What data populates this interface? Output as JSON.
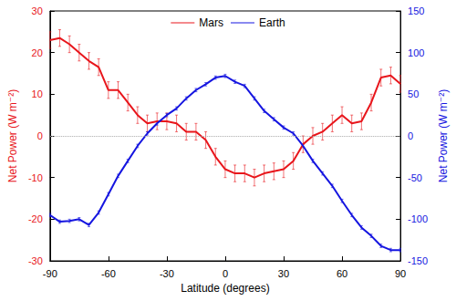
{
  "chart_data": {
    "type": "line",
    "x_label": "Latitude (degrees)",
    "y_label": "Net Power (W m⁻²)",
    "y2_label": "Net Power (W m⁻²)",
    "x": [
      -90,
      -85,
      -80,
      -75,
      -70,
      -65,
      -60,
      -55,
      -50,
      -45,
      -40,
      -35,
      -30,
      -25,
      -20,
      -15,
      -10,
      -5,
      0,
      5,
      10,
      15,
      20,
      25,
      30,
      35,
      40,
      45,
      50,
      55,
      60,
      65,
      70,
      75,
      80,
      85,
      90
    ],
    "series": [
      {
        "name": "Mars",
        "color": "#e8151b",
        "axis": "y",
        "values": [
          23,
          23.5,
          22,
          20,
          18,
          16.5,
          11,
          11,
          8,
          5,
          3,
          3.5,
          3.5,
          3,
          1,
          1,
          -1,
          -5,
          -8,
          -9,
          -9,
          -10,
          -9,
          -8.5,
          -8,
          -6,
          -2,
          0,
          1,
          3,
          5,
          3,
          3.5,
          8,
          14,
          14.5,
          12.5
        ],
        "errors": [
          2,
          2,
          2,
          2,
          2,
          2,
          2,
          2,
          2,
          2,
          2,
          2,
          2,
          2,
          2,
          2,
          2,
          2,
          2,
          2,
          2,
          2,
          2,
          2,
          2,
          2,
          2,
          2,
          2,
          2,
          2,
          2,
          2,
          2,
          2,
          2,
          2
        ]
      },
      {
        "name": "Earth",
        "color": "#1515e0",
        "axis": "y2",
        "values": [
          -95,
          -103,
          -102,
          -100,
          -107,
          -92,
          -70,
          -48,
          -30,
          -12,
          3,
          15,
          25,
          33,
          45,
          55,
          62,
          70,
          72,
          65,
          60,
          45,
          30,
          20,
          10,
          3,
          -12,
          -30,
          -45,
          -60,
          -78,
          -95,
          -110,
          -120,
          -132,
          -137,
          -137
        ],
        "errors": [
          2,
          2,
          2,
          2,
          2,
          2,
          2,
          2,
          2,
          2,
          2,
          2,
          2,
          2,
          2,
          2,
          2,
          2,
          2,
          2,
          2,
          2,
          2,
          2,
          2,
          2,
          2,
          2,
          2,
          2,
          2,
          2,
          2,
          2,
          2,
          2,
          2
        ]
      }
    ],
    "xlim": [
      -90,
      90
    ],
    "xticks": [
      -90,
      -60,
      -30,
      0,
      30,
      60,
      90
    ],
    "ylim": [
      -30,
      30
    ],
    "yticks": [
      -30,
      -20,
      -10,
      0,
      10,
      20,
      30
    ],
    "y2lim": [
      -150,
      150
    ],
    "y2ticks": [
      -150,
      -100,
      -50,
      0,
      50,
      100,
      150
    ],
    "legend": "top",
    "grid": false
  }
}
